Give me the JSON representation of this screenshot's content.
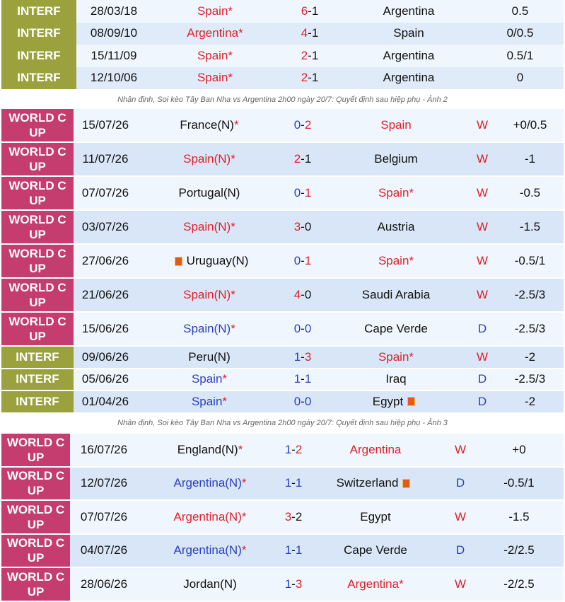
{
  "captions": {
    "c2": "Nhận định, Soi kèo Tây Ban Nha vs Argentina 2h00 ngày 20/7: Quyết định sau hiệp phụ - Ảnh 2",
    "c3": "Nhận định, Soi kèo Tây Ban Nha vs Argentina 2h00 ngày 20/7: Quyết định sau hiệp phụ - Ảnh 3"
  },
  "table1": [
    {
      "comp": "INTERF",
      "date": "28/03/18",
      "home": "Spain*",
      "home_color": "red",
      "score_home": "6",
      "score_away": "1",
      "score_color": "home",
      "away": "Argentina",
      "away_color": "black",
      "result": "",
      "handicap": "0.5"
    },
    {
      "comp": "INTERF",
      "date": "08/09/10",
      "home": "Argentina*",
      "home_color": "red",
      "score_home": "4",
      "score_away": "1",
      "score_color": "home",
      "away": "Spain",
      "away_color": "black",
      "result": "",
      "handicap": "0/0.5"
    },
    {
      "comp": "INTERF",
      "date": "15/11/09",
      "home": "Spain*",
      "home_color": "red",
      "score_home": "2",
      "score_away": "1",
      "score_color": "home",
      "away": "Argentina",
      "away_color": "black",
      "result": "",
      "handicap": "0.5/1"
    },
    {
      "comp": "INTERF",
      "date": "12/10/06",
      "home": "Spain*",
      "home_color": "red",
      "score_home": "2",
      "score_away": "1",
      "score_color": "home",
      "away": "Argentina",
      "away_color": "black",
      "result": "",
      "handicap": "0"
    }
  ],
  "table2": [
    {
      "comp": "WORLD C UP",
      "date": "15/07/26",
      "home": "France(N)",
      "home_star": "*",
      "home_color": "black",
      "score_home": "0",
      "score_away": "2",
      "score_color": "away",
      "away": "Spain",
      "away_color": "red",
      "result": "W",
      "handicap": "+0/0.5"
    },
    {
      "comp": "WORLD C UP",
      "date": "11/07/26",
      "home": "Spain(N)",
      "home_star": "*",
      "home_color": "red",
      "score_home": "2",
      "score_away": "1",
      "score_color": "home",
      "away": "Belgium",
      "away_color": "black",
      "result": "W",
      "handicap": "-1"
    },
    {
      "comp": "WORLD C UP",
      "date": "07/07/26",
      "home": "Portugal(N)",
      "home_star": "",
      "home_color": "black",
      "score_home": "0",
      "score_away": "1",
      "score_color": "away",
      "away": "Spain*",
      "away_color": "red",
      "result": "W",
      "handicap": "-0.5"
    },
    {
      "comp": "WORLD C UP",
      "date": "03/07/26",
      "home": "Spain(N)",
      "home_star": "*",
      "home_color": "red",
      "score_home": "3",
      "score_away": "0",
      "score_color": "home",
      "away": "Austria",
      "away_color": "black",
      "result": "W",
      "handicap": "-1.5"
    },
    {
      "comp": "WORLD C UP",
      "date": "27/06/26",
      "home": "Uruguay(N)",
      "home_star": "",
      "home_color": "black",
      "home_flag": true,
      "score_home": "0",
      "score_away": "1",
      "score_color": "away",
      "away": "Spain*",
      "away_color": "red",
      "result": "W",
      "handicap": "-0.5/1"
    },
    {
      "comp": "WORLD C UP",
      "date": "21/06/26",
      "home": "Spain(N)",
      "home_star": "*",
      "home_color": "red",
      "score_home": "4",
      "score_away": "0",
      "score_color": "home",
      "away": "Saudi Arabia",
      "away_color": "black",
      "result": "W",
      "handicap": "-2.5/3"
    },
    {
      "comp": "WORLD C UP",
      "date": "15/06/26",
      "home": "Spain(N)",
      "home_star": "*",
      "home_color": "blue",
      "score_home": "0",
      "score_away": "0",
      "score_color": "none",
      "away": "Cape Verde",
      "away_color": "black",
      "result": "D",
      "handicap": "-2.5/3"
    },
    {
      "comp": "INTERF",
      "date": "09/06/26",
      "home": "Peru(N)",
      "home_star": "",
      "home_color": "black",
      "score_home": "1",
      "score_away": "3",
      "score_color": "away",
      "away": "Spain*",
      "away_color": "red",
      "result": "W",
      "handicap": "-2"
    },
    {
      "comp": "INTERF",
      "date": "05/06/26",
      "home": "Spain",
      "home_star": "*",
      "home_color": "blue",
      "score_home": "1",
      "score_away": "1",
      "score_color": "none",
      "away": "Iraq",
      "away_color": "black",
      "result": "D",
      "handicap": "-2.5/3"
    },
    {
      "comp": "INTERF",
      "date": "01/04/26",
      "home": "Spain",
      "home_star": "*",
      "home_color": "blue",
      "score_home": "0",
      "score_away": "0",
      "score_color": "none",
      "away": "Egypt",
      "away_color": "black",
      "away_flag": true,
      "result": "D",
      "handicap": "-2"
    }
  ],
  "table3": [
    {
      "comp": "WORLD C UP",
      "date": "16/07/26",
      "home": "England(N)",
      "home_star": "*",
      "home_color": "black",
      "score_home": "1",
      "score_away": "2",
      "score_color": "away",
      "away": "Argentina",
      "away_color": "red",
      "result": "W",
      "handicap": "+0"
    },
    {
      "comp": "WORLD C UP",
      "date": "12/07/26",
      "home": "Argentina(N)",
      "home_star": "*",
      "home_color": "blue",
      "score_home": "1",
      "score_away": "1",
      "score_color": "none",
      "away": "Switzerland",
      "away_color": "black",
      "away_flag": true,
      "result": "D",
      "handicap": "-0.5/1"
    },
    {
      "comp": "WORLD C UP",
      "date": "07/07/26",
      "home": "Argentina(N)",
      "home_star": "*",
      "home_color": "red",
      "score_home": "3",
      "score_away": "2",
      "score_color": "home",
      "away": "Egypt",
      "away_color": "black",
      "result": "W",
      "handicap": "-1.5"
    },
    {
      "comp": "WORLD C UP",
      "date": "04/07/26",
      "home": "Argentina(N)",
      "home_star": "*",
      "home_color": "blue",
      "score_home": "1",
      "score_away": "1",
      "score_color": "none",
      "away": "Cape Verde",
      "away_color": "black",
      "result": "D",
      "handicap": "-2/2.5"
    },
    {
      "comp": "WORLD C UP",
      "date": "28/06/26",
      "home": "Jordan(N)",
      "home_star": "",
      "home_color": "black",
      "score_home": "1",
      "score_away": "3",
      "score_color": "away",
      "away": "Argentina*",
      "away_color": "red",
      "result": "W",
      "handicap": "-2/2.5"
    }
  ]
}
